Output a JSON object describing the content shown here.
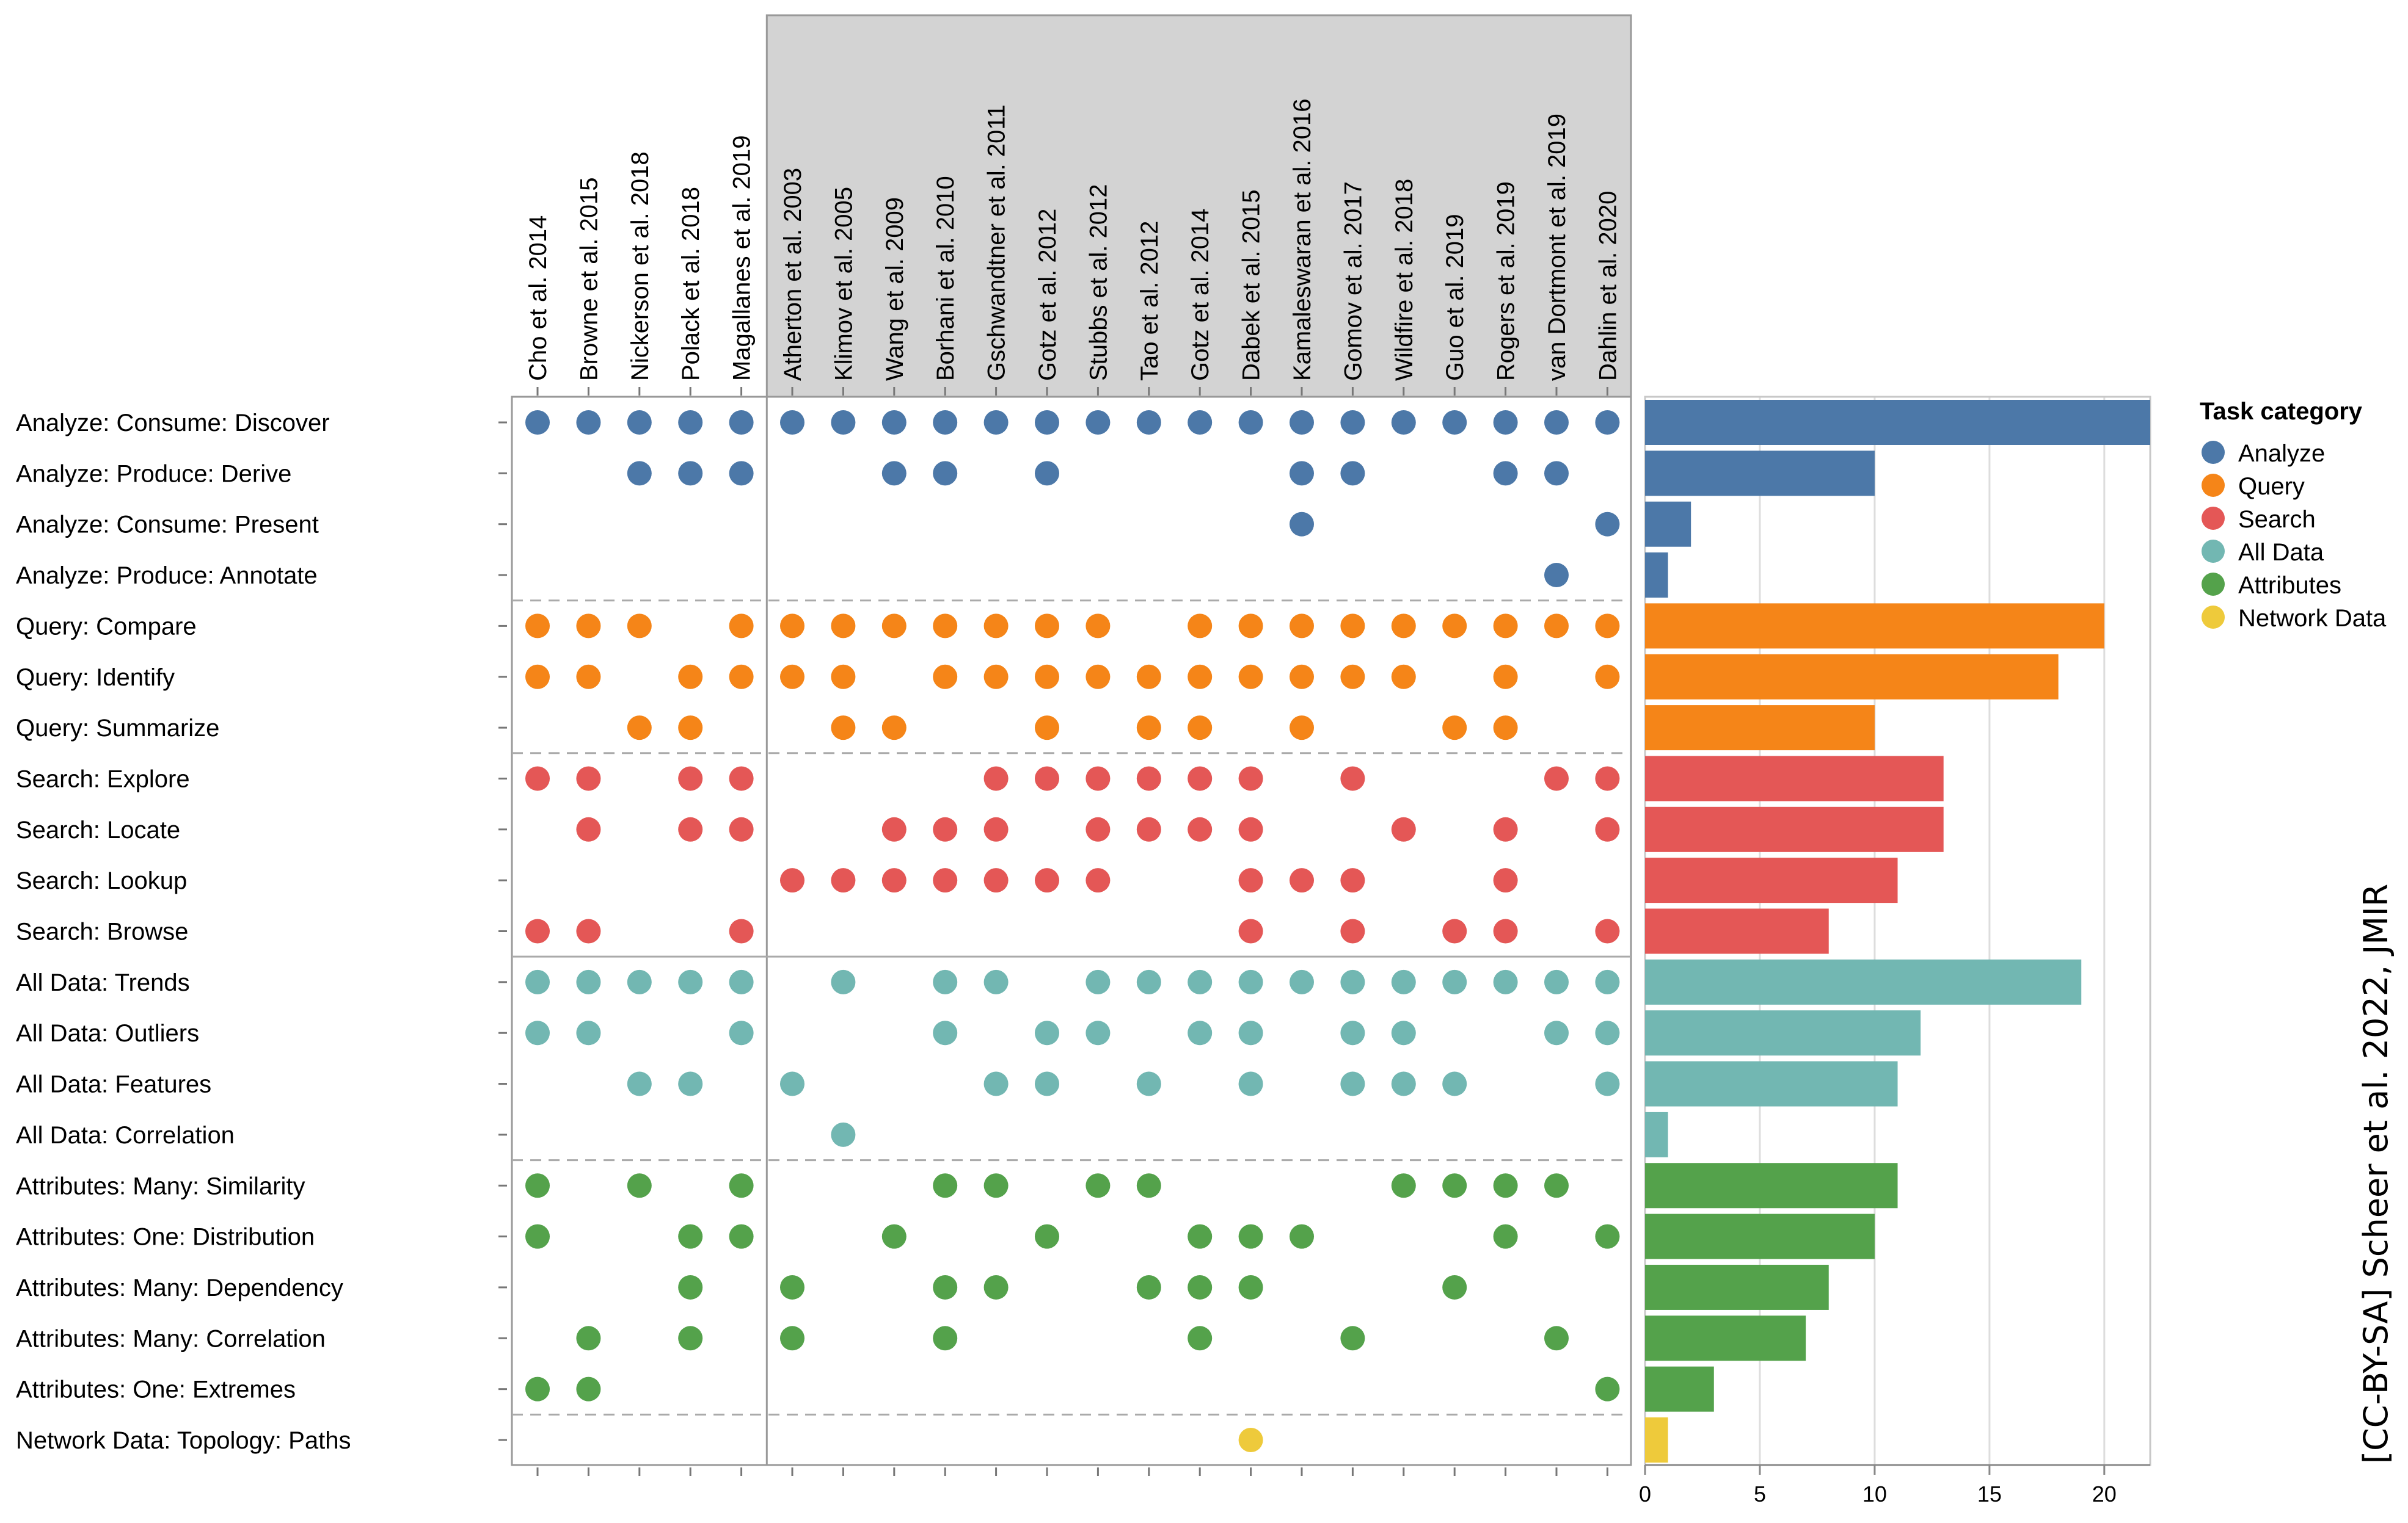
{
  "chart_data": {
    "type": "scatter",
    "title": "",
    "legend": {
      "title": "Task category",
      "placement": "right",
      "items": [
        {
          "label": "Analyze",
          "color": "#4c78a8"
        },
        {
          "label": "Query",
          "color": "#f58518"
        },
        {
          "label": "Search",
          "color": "#e45756"
        },
        {
          "label": "All Data",
          "color": "#72b7b2"
        },
        {
          "label": "Attributes",
          "color": "#54a24b"
        },
        {
          "label": "Network Data",
          "color": "#eeca3b"
        }
      ]
    },
    "papers": [
      "Cho et al. 2014",
      "Browne et al. 2015",
      "Nickerson et al. 2018",
      "Polack et al. 2018",
      "Magallanes et al. 2019",
      "Atherton et al. 2003",
      "Klimov et al. 2005",
      "Wang et al. 2009",
      "Borhani et al. 2010",
      "Gschwandtner et al. 2011",
      "Gotz et al. 2012",
      "Stubbs et al. 2012",
      "Tao et al. 2012",
      "Gotz et al. 2014",
      "Dabek et al. 2015",
      "Kamaleswaran et al. 2016",
      "Gomov et al. 2017",
      "Wildfire et al. 2018",
      "Guo et al. 2019",
      "Rogers et al. 2019",
      "van Dortmont et al. 2019",
      "Dahlin et al. 2020"
    ],
    "highlighted_paper_range": [
      5,
      21
    ],
    "tasks": [
      {
        "label": "Analyze: Consume: Discover",
        "category": "Analyze",
        "papers": [
          0,
          1,
          2,
          3,
          4,
          5,
          6,
          7,
          8,
          9,
          10,
          11,
          12,
          13,
          14,
          15,
          16,
          17,
          18,
          19,
          20,
          21
        ],
        "count": 22
      },
      {
        "label": "Analyze: Produce: Derive",
        "category": "Analyze",
        "papers": [
          2,
          3,
          4,
          7,
          8,
          10,
          15,
          16,
          19,
          20
        ],
        "count": 10
      },
      {
        "label": "Analyze: Consume: Present",
        "category": "Analyze",
        "papers": [
          15,
          21
        ],
        "count": 2
      },
      {
        "label": "Analyze: Produce: Annotate",
        "category": "Analyze",
        "papers": [
          20
        ],
        "count": 1
      },
      {
        "label": "Query: Compare",
        "category": "Query",
        "papers": [
          0,
          1,
          2,
          4,
          5,
          6,
          7,
          8,
          9,
          10,
          11,
          13,
          14,
          15,
          16,
          17,
          18,
          19,
          20,
          21
        ],
        "count": 20
      },
      {
        "label": "Query: Identify",
        "category": "Query",
        "papers": [
          0,
          1,
          3,
          4,
          5,
          6,
          8,
          9,
          10,
          11,
          12,
          13,
          14,
          15,
          16,
          17,
          19,
          21
        ],
        "count": 18
      },
      {
        "label": "Query: Summarize",
        "category": "Query",
        "papers": [
          2,
          3,
          6,
          7,
          10,
          12,
          13,
          15,
          18,
          19
        ],
        "count": 10
      },
      {
        "label": "Search: Explore",
        "category": "Search",
        "papers": [
          0,
          1,
          3,
          4,
          9,
          10,
          11,
          12,
          13,
          14,
          16,
          20,
          21
        ],
        "count": 13
      },
      {
        "label": "Search: Locate",
        "category": "Search",
        "papers": [
          1,
          3,
          4,
          7,
          8,
          9,
          11,
          12,
          13,
          14,
          17,
          19,
          21
        ],
        "count": 13
      },
      {
        "label": "Search: Lookup",
        "category": "Search",
        "papers": [
          5,
          6,
          7,
          8,
          9,
          10,
          11,
          14,
          15,
          16,
          19
        ],
        "count": 11
      },
      {
        "label": "Search: Browse",
        "category": "Search",
        "papers": [
          0,
          1,
          4,
          14,
          16,
          18,
          19,
          21
        ],
        "count": 8
      },
      {
        "label": "All Data: Trends",
        "category": "All Data",
        "papers": [
          0,
          1,
          2,
          3,
          4,
          6,
          8,
          9,
          11,
          12,
          13,
          14,
          15,
          16,
          17,
          18,
          19,
          20,
          21
        ],
        "count": 19
      },
      {
        "label": "All Data: Outliers",
        "category": "All Data",
        "papers": [
          0,
          1,
          4,
          8,
          10,
          11,
          13,
          14,
          16,
          17,
          20,
          21
        ],
        "count": 12
      },
      {
        "label": "All Data: Features",
        "category": "All Data",
        "papers": [
          2,
          3,
          5,
          9,
          10,
          12,
          14,
          16,
          17,
          18,
          21
        ],
        "count": 11
      },
      {
        "label": "All Data: Correlation",
        "category": "All Data",
        "papers": [
          6
        ],
        "count": 1
      },
      {
        "label": "Attributes: Many: Similarity",
        "category": "Attributes",
        "papers": [
          0,
          2,
          4,
          8,
          9,
          11,
          12,
          17,
          18,
          19,
          20
        ],
        "count": 11
      },
      {
        "label": "Attributes: One: Distribution",
        "category": "Attributes",
        "papers": [
          0,
          3,
          4,
          7,
          10,
          13,
          14,
          15,
          19,
          21
        ],
        "count": 10
      },
      {
        "label": "Attributes: Many: Dependency",
        "category": "Attributes",
        "papers": [
          3,
          5,
          8,
          9,
          12,
          13,
          14,
          18
        ],
        "count": 8
      },
      {
        "label": "Attributes: Many: Correlation",
        "category": "Attributes",
        "papers": [
          1,
          3,
          5,
          8,
          13,
          16,
          20
        ],
        "count": 7
      },
      {
        "label": "Attributes: One: Extremes",
        "category": "Attributes",
        "papers": [
          0,
          1,
          21
        ],
        "count": 3
      },
      {
        "label": "Network Data: Topology: Paths",
        "category": "Network Data",
        "papers": [
          14
        ],
        "count": 1
      }
    ],
    "bar_axis": {
      "ticks": [
        0,
        5,
        10,
        15,
        20
      ],
      "range": [
        0,
        22
      ]
    },
    "grid": true
  },
  "credit": "[CC-BY-SA] Scheer et al. 2022, JMIR"
}
